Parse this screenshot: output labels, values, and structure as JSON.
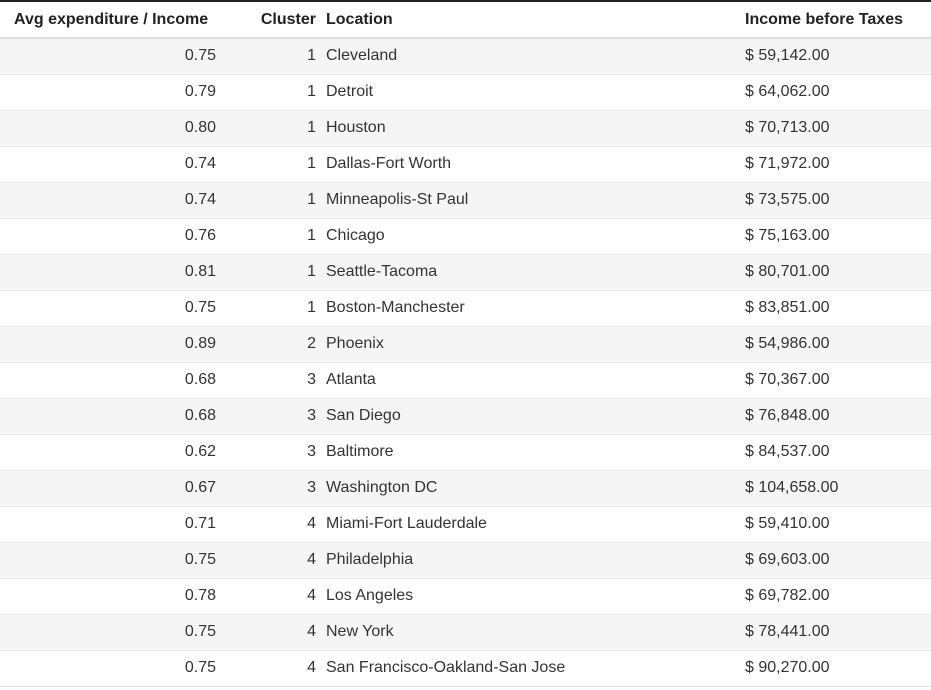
{
  "table": {
    "headers": {
      "ratio": "Avg expenditure / Income",
      "cluster": "Cluster",
      "location": "Location",
      "income": "Income before Taxes"
    },
    "rows": [
      {
        "ratio": "0.75",
        "cluster": "1",
        "location": "Cleveland",
        "income": "$ 59,142.00"
      },
      {
        "ratio": "0.79",
        "cluster": "1",
        "location": "Detroit",
        "income": "$ 64,062.00"
      },
      {
        "ratio": "0.80",
        "cluster": "1",
        "location": "Houston",
        "income": "$ 70,713.00"
      },
      {
        "ratio": "0.74",
        "cluster": "1",
        "location": "Dallas-Fort Worth",
        "income": "$ 71,972.00"
      },
      {
        "ratio": "0.74",
        "cluster": "1",
        "location": "Minneapolis-St Paul",
        "income": "$ 73,575.00"
      },
      {
        "ratio": "0.76",
        "cluster": "1",
        "location": "Chicago",
        "income": "$ 75,163.00"
      },
      {
        "ratio": "0.81",
        "cluster": "1",
        "location": "Seattle-Tacoma",
        "income": "$ 80,701.00"
      },
      {
        "ratio": "0.75",
        "cluster": "1",
        "location": "Boston-Manchester",
        "income": "$ 83,851.00"
      },
      {
        "ratio": "0.89",
        "cluster": "2",
        "location": "Phoenix",
        "income": "$ 54,986.00"
      },
      {
        "ratio": "0.68",
        "cluster": "3",
        "location": "Atlanta",
        "income": "$ 70,367.00"
      },
      {
        "ratio": "0.68",
        "cluster": "3",
        "location": "San Diego",
        "income": "$ 76,848.00"
      },
      {
        "ratio": "0.62",
        "cluster": "3",
        "location": "Baltimore",
        "income": "$ 84,537.00"
      },
      {
        "ratio": "0.67",
        "cluster": "3",
        "location": "Washington DC",
        "income": "$ 104,658.00"
      },
      {
        "ratio": "0.71",
        "cluster": "4",
        "location": "Miami-Fort Lauderdale",
        "income": "$ 59,410.00"
      },
      {
        "ratio": "0.75",
        "cluster": "4",
        "location": "Philadelphia",
        "income": "$ 69,603.00"
      },
      {
        "ratio": "0.78",
        "cluster": "4",
        "location": "Los Angeles",
        "income": "$ 69,782.00"
      },
      {
        "ratio": "0.75",
        "cluster": "4",
        "location": "New York",
        "income": "$ 78,441.00"
      },
      {
        "ratio": "0.75",
        "cluster": "4",
        "location": "San Francisco-Oakland-San Jose",
        "income": "$ 90,270.00"
      }
    ]
  }
}
